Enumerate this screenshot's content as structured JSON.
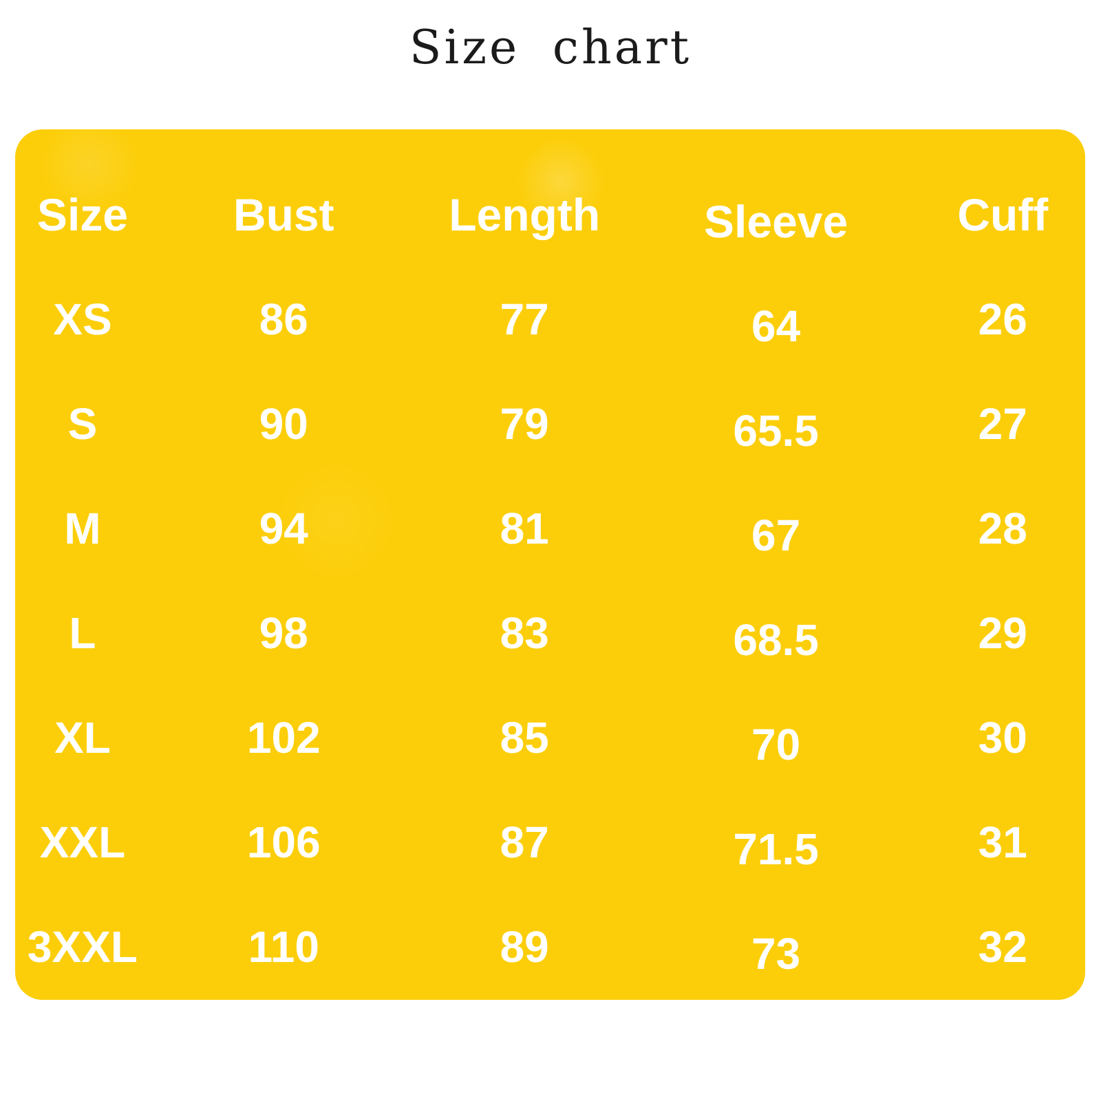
{
  "title": "Size chart",
  "colors": {
    "page_bg": "#FFFFFF",
    "table_bg": "#FCCE0A",
    "table_text": "#FFFFFF",
    "title_text": "#1B1B1B"
  },
  "chart_data": {
    "type": "table",
    "title": "Size chart",
    "columns": [
      "Size",
      "Bust",
      "Length",
      "Sleeve",
      "Cuff"
    ],
    "rows": [
      [
        "XS",
        "86",
        "77",
        "64",
        "26"
      ],
      [
        "S",
        "90",
        "79",
        "65.5",
        "27"
      ],
      [
        "M",
        "94",
        "81",
        "67",
        "28"
      ],
      [
        "L",
        "98",
        "83",
        "68.5",
        "29"
      ],
      [
        "XL",
        "102",
        "85",
        "70",
        "30"
      ],
      [
        "XXL",
        "106",
        "87",
        "71.5",
        "31"
      ],
      [
        "3XXL",
        "110",
        "89",
        "73",
        "32"
      ]
    ]
  }
}
